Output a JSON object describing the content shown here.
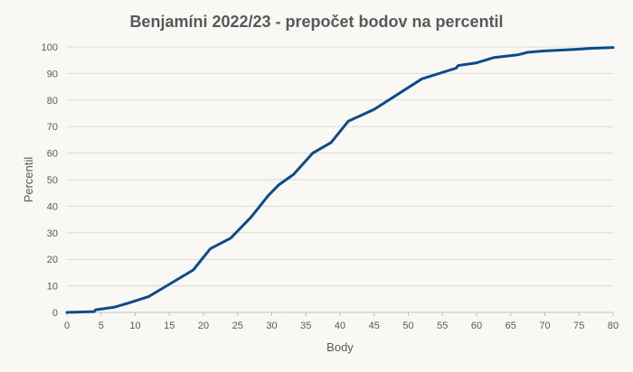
{
  "chart_data": {
    "type": "line",
    "title": "Benjamíni 2022/23 - prepočet bodov na percentil",
    "xlabel": "Body",
    "ylabel": "Percentil",
    "xlim": [
      0,
      80
    ],
    "ylim": [
      0,
      100
    ],
    "xticks": [
      0,
      5,
      10,
      15,
      20,
      25,
      30,
      35,
      40,
      45,
      50,
      55,
      60,
      65,
      70,
      75,
      80
    ],
    "yticks": [
      0,
      10,
      20,
      30,
      40,
      50,
      60,
      70,
      80,
      90,
      100
    ],
    "grid": true,
    "legend": "none",
    "series": [
      {
        "color": "#0b4a8b",
        "x": [
          0,
          4,
          4.2,
          7,
          9,
          12,
          18.5,
          21,
          24,
          27,
          29.5,
          31,
          33.2,
          36,
          38.7,
          41.2,
          45,
          52,
          57,
          57.3,
          60,
          62.5,
          66,
          67.5,
          70,
          74,
          76.8,
          80
        ],
        "y": [
          0,
          0.3,
          1,
          2,
          3.5,
          6,
          16,
          24,
          28,
          36,
          44,
          48,
          52,
          60,
          64,
          72,
          76.5,
          88,
          92,
          93,
          94,
          96,
          97,
          98,
          98.5,
          99,
          99.5,
          99.8
        ]
      }
    ]
  }
}
